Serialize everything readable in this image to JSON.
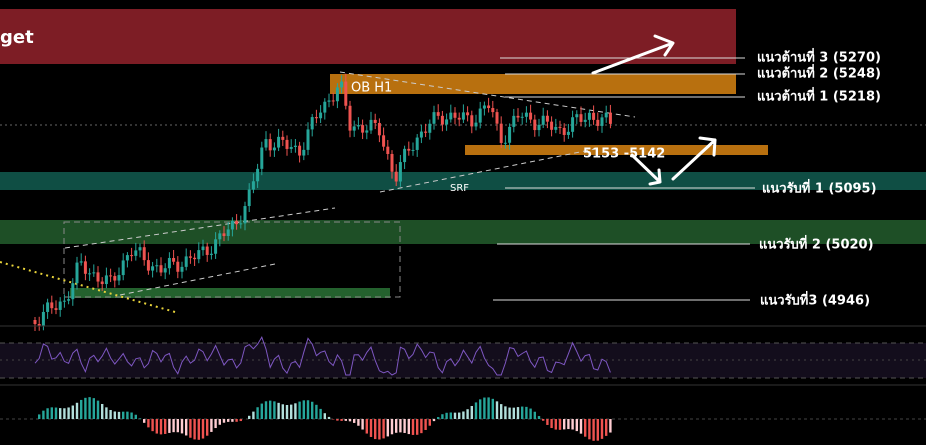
{
  "banner": {
    "title": "get"
  },
  "zones": {
    "order_block": "OB H1",
    "demand": "5153 -5142",
    "trendline": "SRF"
  },
  "resistance": [
    {
      "label": "แนวต้านที่ 3 (5270)"
    },
    {
      "label": "แนวต้านที่ 2 (5248)"
    },
    {
      "label": "แนวต้านที่ 1 (5218)"
    }
  ],
  "support": [
    {
      "label": "แนวรับที่ 1 (5095)"
    },
    {
      "label": "แนวรับที่ 2 (5020)"
    },
    {
      "label": "แนวรับที่3 (4946)"
    }
  ]
}
